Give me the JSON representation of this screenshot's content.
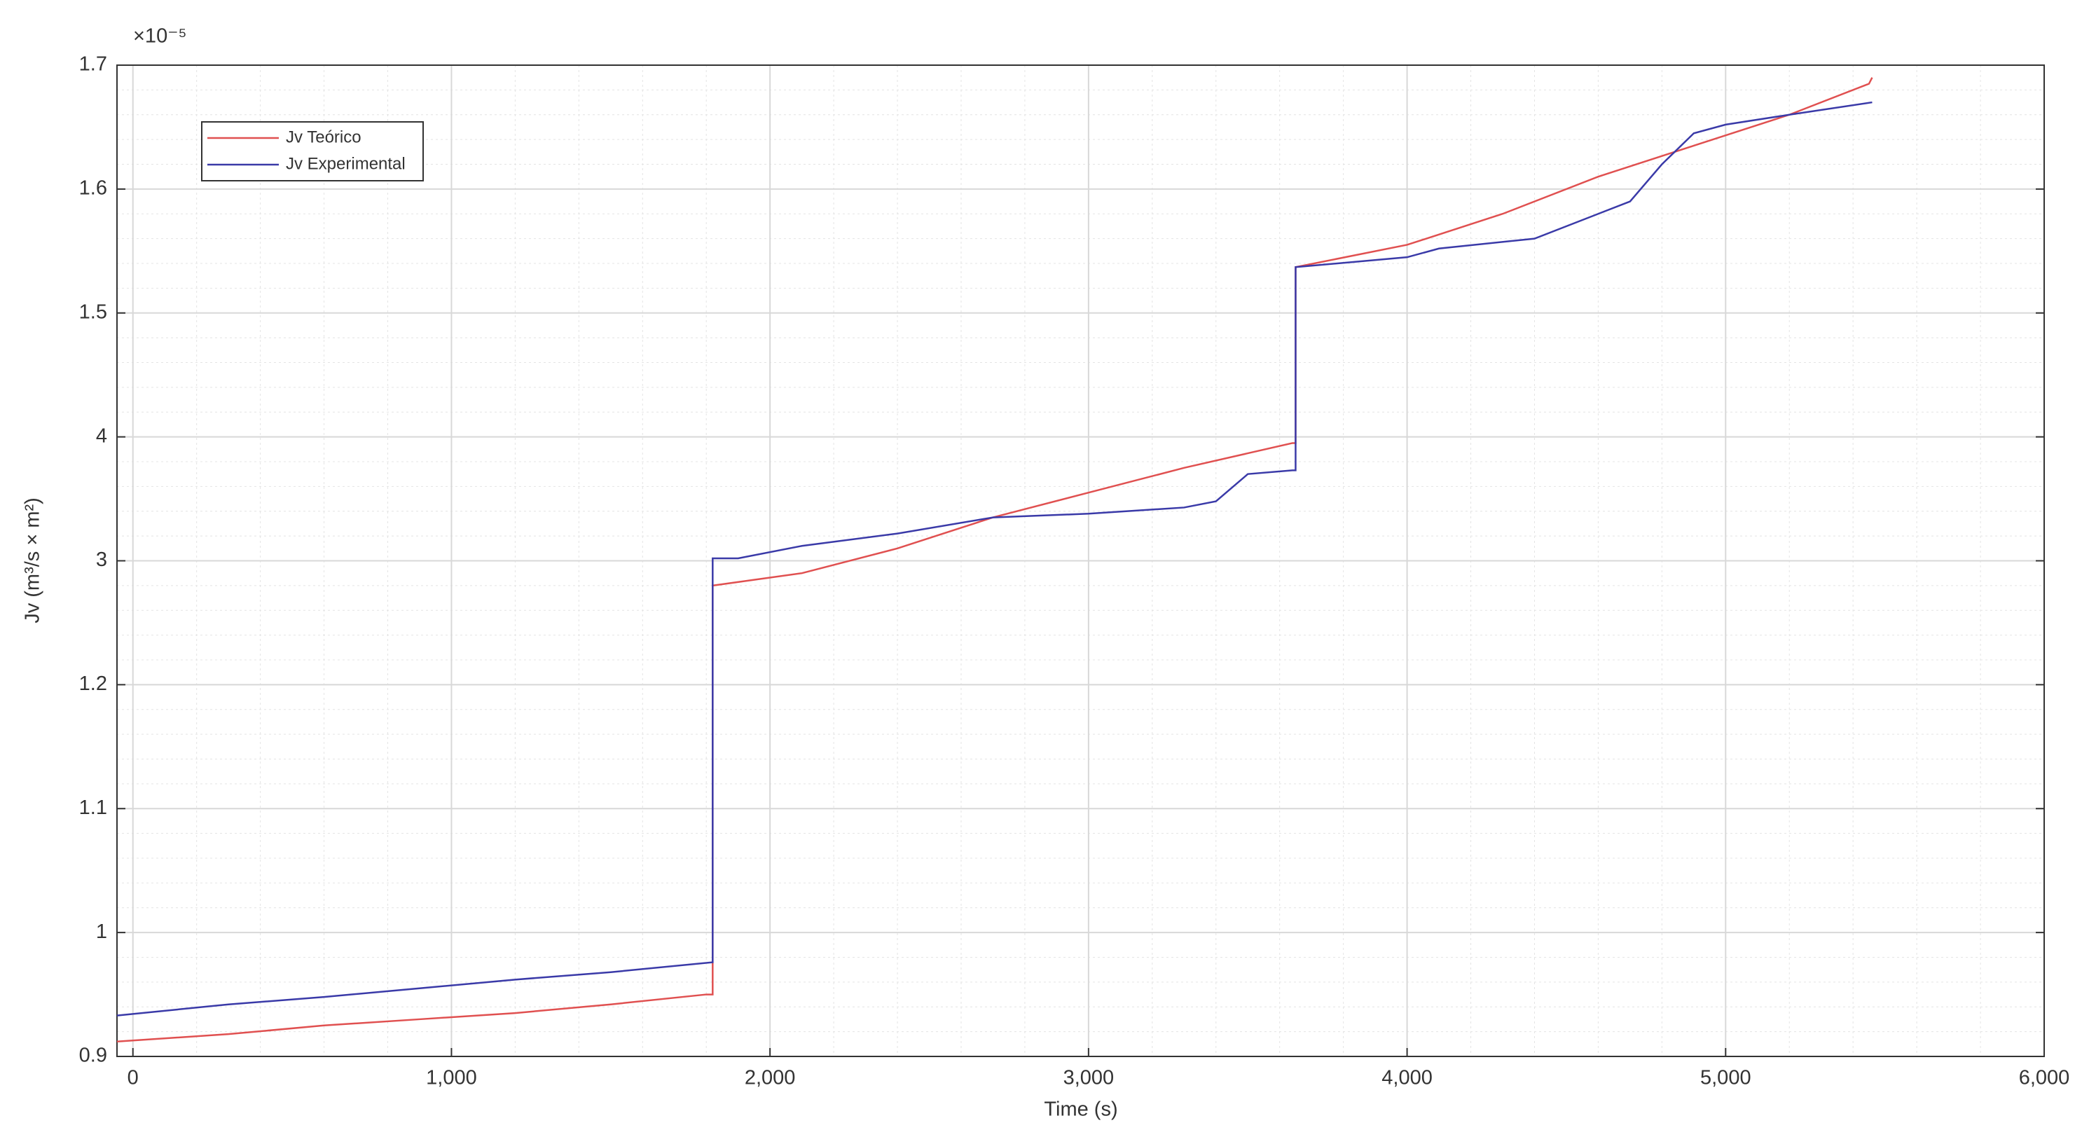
{
  "chart_data": {
    "type": "line",
    "x_label": "Time (s)",
    "y_label": "Jv (m³/s × m²)",
    "y_multiplier": "×10⁻⁵",
    "xlim": [
      -50,
      6000
    ],
    "ylim": [
      0.9,
      1.7
    ],
    "xticks": [
      0,
      {
        "value": 1000,
        "label": "1,000"
      },
      {
        "value": 2000,
        "label": "2,000"
      },
      {
        "value": 3000,
        "label": "3,000"
      },
      {
        "value": 4000,
        "label": "4,000"
      },
      {
        "value": 5000,
        "label": "5,000"
      },
      {
        "value": 6000,
        "label": "6,000"
      }
    ],
    "yticks": [
      0.9,
      1,
      1.1,
      1.2,
      {
        "value": 1.3,
        "label": "3"
      },
      {
        "value": 1.4,
        "label": "4"
      },
      1.5,
      1.6,
      1.7
    ],
    "grid": true,
    "minor_grid": true,
    "legend_position": "upper-left",
    "series": [
      {
        "name": "Jv Teórico",
        "color": "#e05050",
        "x": [
          -50,
          300,
          600,
          900,
          1200,
          1500,
          1800,
          1820,
          1820,
          2100,
          2400,
          2700,
          3000,
          3300,
          3640,
          3650,
          3650,
          4000,
          4300,
          4600,
          4900,
          5200,
          5450,
          5460
        ],
        "values": [
          0.912,
          0.918,
          0.925,
          0.93,
          0.935,
          0.942,
          0.95,
          0.95,
          1.28,
          1.29,
          1.31,
          1.335,
          1.355,
          1.375,
          1.395,
          1.395,
          1.537,
          1.555,
          1.58,
          1.61,
          1.635,
          1.66,
          1.685,
          1.69
        ]
      },
      {
        "name": "Jv Experimental",
        "color": "#3a3aa8",
        "x": [
          -50,
          300,
          600,
          900,
          1200,
          1500,
          1820,
          1820,
          1900,
          2100,
          2400,
          2700,
          3000,
          3300,
          3400,
          3500,
          3640,
          3650,
          3650,
          4000,
          4100,
          4400,
          4600,
          4700,
          4800,
          4900,
          5000,
          5200,
          5460
        ],
        "values": [
          0.933,
          0.942,
          0.948,
          0.955,
          0.962,
          0.968,
          0.976,
          1.302,
          1.302,
          1.312,
          1.322,
          1.335,
          1.338,
          1.343,
          1.348,
          1.37,
          1.373,
          1.373,
          1.537,
          1.545,
          1.552,
          1.56,
          1.58,
          1.59,
          1.62,
          1.645,
          1.652,
          1.66,
          1.67
        ]
      }
    ]
  }
}
